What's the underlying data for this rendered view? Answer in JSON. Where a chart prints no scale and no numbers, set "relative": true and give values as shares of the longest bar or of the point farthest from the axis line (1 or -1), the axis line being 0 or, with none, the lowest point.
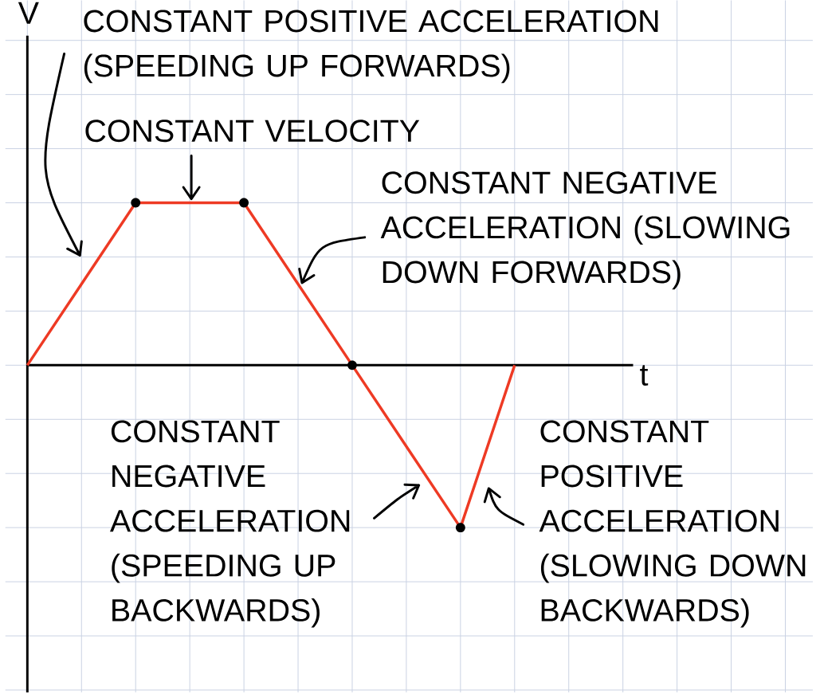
{
  "chart_data": {
    "type": "line",
    "relative": true,
    "xlabel": "t",
    "grid": true,
    "line_style": "solid",
    "categories": [
      null,
      null,
      null,
      null,
      null,
      null,
      null,
      null,
      null,
      null
    ],
    "series": [
      {
        "color": "#ee3a24",
        "values": [
          0,
          0.5,
          1,
          1,
          1,
          0.5,
          0,
          -0.5,
          -1,
          0
        ]
      }
    ],
    "annotations": [
      "V",
      "CONSTANT POSITIVE ACCELERATION (SPEEDING UP FORWARDS)",
      "CONSTANT VELOCITY",
      "CONSTANT NEGATIVE ACCELERATION (SLOWING DOWN FORWARDS)",
      "CONSTANT NEGATIVE ACCELERATION (SPEEDING UP BACKWARDS)",
      "CONSTANT POSITIVE ACCELERATION (SLOWING DOWN BACKWARDS)"
    ]
  }
}
